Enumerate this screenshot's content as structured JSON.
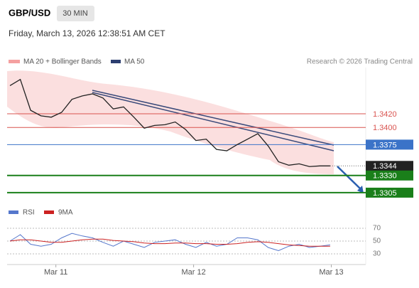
{
  "chart_data": {
    "type": "line",
    "symbol": "GBP/USD",
    "interval": "30 MIN",
    "timestamp": "Friday, March 13, 2026 12:38:51 AM CET",
    "legend": [
      "MA 20 + Bollinger Bands",
      "MA 50"
    ],
    "credit": "Research © 2026 Trading Central",
    "x": [
      -8,
      -6.2,
      -4.4,
      -2.6,
      -0.8,
      1,
      2.8,
      4.6,
      6.4,
      8.2,
      10,
      11.8,
      13.6,
      15.4,
      17.2,
      19,
      20.8,
      22.6,
      24.4,
      26.2,
      28,
      29.8,
      31.6,
      33.4,
      35.2,
      37,
      38.8,
      40.6,
      42.4,
      44.2,
      46,
      47.8
    ],
    "series": [
      {
        "name": "GBP/USD",
        "color": "#222222",
        "values": [
          1.3461,
          1.347,
          1.3425,
          1.3417,
          1.3415,
          1.3422,
          1.3441,
          1.3446,
          1.3449,
          1.3443,
          1.3427,
          1.343,
          1.3415,
          1.3399,
          1.3403,
          1.3404,
          1.3408,
          1.3397,
          1.3381,
          1.3383,
          1.3368,
          1.3366,
          1.3375,
          1.3383,
          1.3391,
          1.3373,
          1.335,
          1.3345,
          1.3347,
          1.3343,
          1.3344,
          1.3344
        ]
      }
    ],
    "xlim": [
      -8.5,
      54
    ],
    "xticks": [
      {
        "value": 0,
        "label": "Mar 11"
      },
      {
        "value": 24,
        "label": "Mar 12"
      },
      {
        "value": 48,
        "label": "Mar 13"
      }
    ],
    "ylim": [
      1.329,
      1.349
    ],
    "levels": [
      {
        "value": 1.342,
        "label": "1.3420",
        "color": "#d9534f",
        "box": false
      },
      {
        "value": 1.34,
        "label": "1.3400",
        "color": "#d9534f",
        "box": false
      },
      {
        "value": 1.3375,
        "label": "1.3375",
        "color": "#3b73c8",
        "box": true
      },
      {
        "value": 1.3344,
        "label": "1.3344",
        "color": "#222222",
        "box": true
      },
      {
        "value": 1.333,
        "label": "1.3330",
        "color": "#1a7f1a",
        "box": true
      },
      {
        "value": 1.3305,
        "label": "1.3305",
        "color": "#1a7f1a",
        "box": true
      }
    ],
    "rsi": {
      "ylim": [
        20,
        80
      ],
      "yticks": [
        70,
        50,
        30
      ],
      "series": [
        {
          "name": "RSI",
          "color": "#5577cc",
          "values": [
            50,
            60,
            45,
            42,
            45,
            55,
            62,
            58,
            55,
            48,
            42,
            50,
            45,
            40,
            48,
            50,
            52,
            45,
            40,
            48,
            42,
            45,
            55,
            55,
            52,
            40,
            35,
            42,
            45,
            40,
            42,
            44
          ]
        },
        {
          "name": "9MA",
          "color": "#cc2222",
          "values": [
            50,
            52,
            52,
            50,
            48,
            48,
            50,
            52,
            53,
            53,
            51,
            50,
            49,
            47,
            46,
            46,
            47,
            47,
            46,
            46,
            45,
            45,
            46,
            48,
            49,
            48,
            46,
            44,
            43,
            42,
            42,
            42
          ]
        }
      ]
    }
  }
}
